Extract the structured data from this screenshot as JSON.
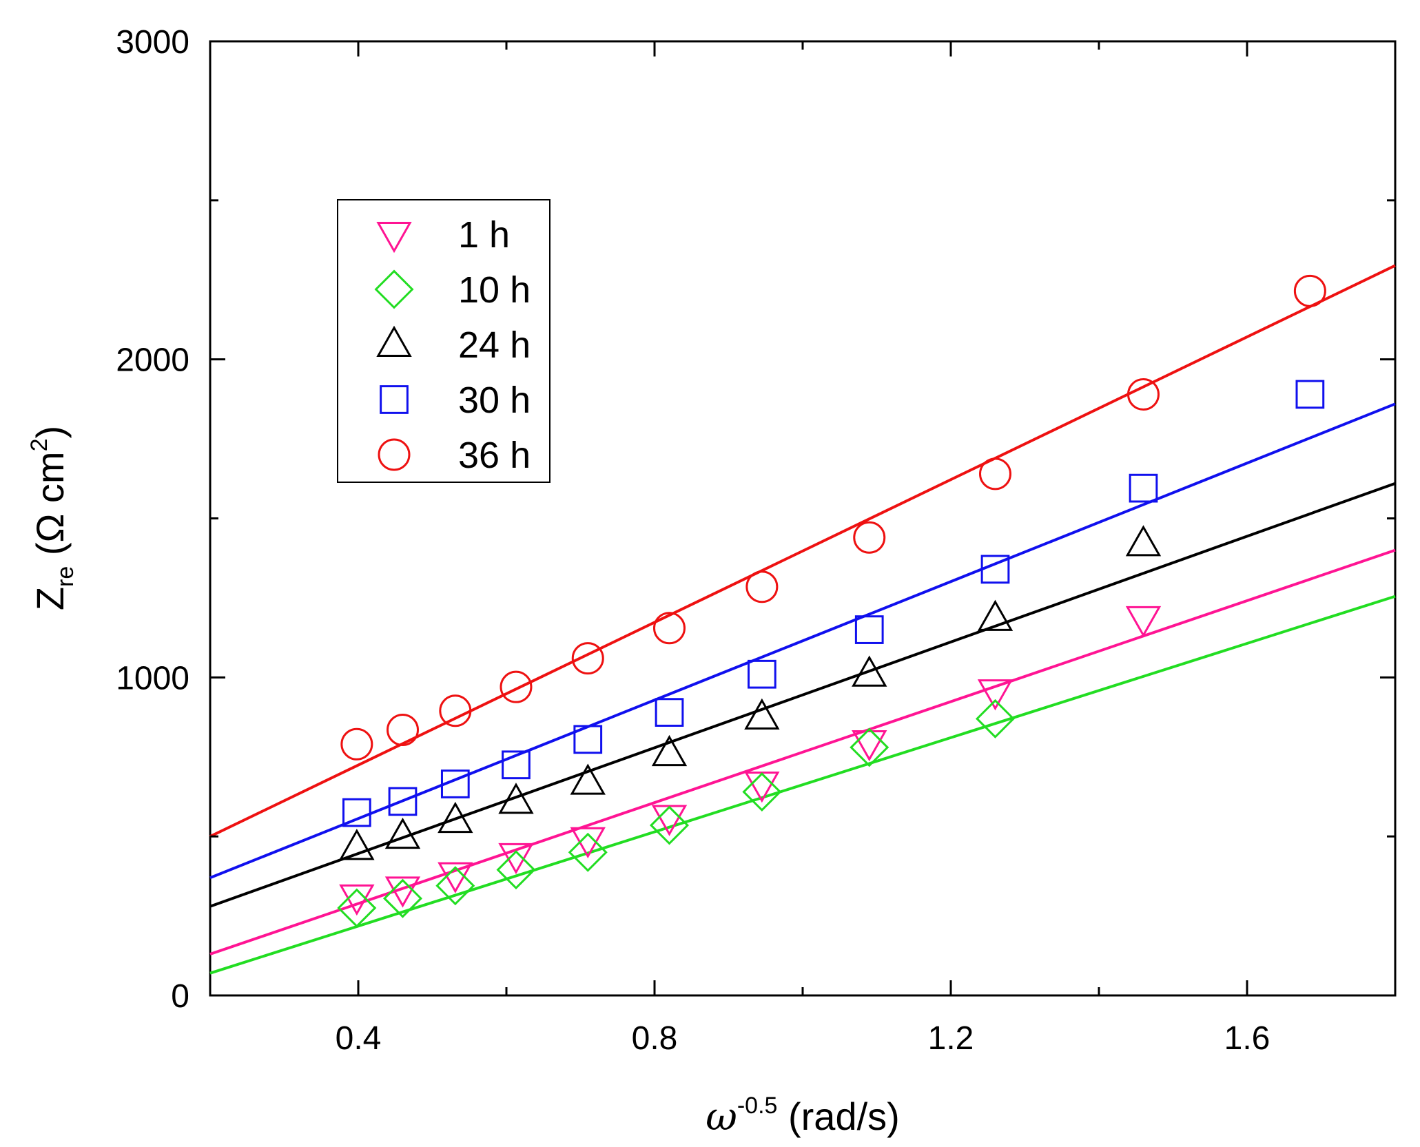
{
  "chart_data": {
    "type": "scatter",
    "title": "",
    "xlabel": {
      "base": "ω",
      "sup": "-0.5",
      "unit": " (rad/s)"
    },
    "ylabel": {
      "base": "Z",
      "sub": "re",
      "unit_open": " (Ω cm",
      "sup": "2",
      "unit_close": ")"
    },
    "xlim": [
      0.2,
      1.8
    ],
    "ylim": [
      0,
      3000
    ],
    "x_ticks": [
      0.4,
      0.8,
      1.2,
      1.6
    ],
    "x_tick_labels": [
      "0.4",
      "0.8",
      "1.2",
      "1.6"
    ],
    "x_minor_ticks": [
      0.6,
      1.0,
      1.4
    ],
    "y_ticks": [
      0,
      1000,
      2000,
      3000
    ],
    "y_tick_labels": [
      "0",
      "1000",
      "2000",
      "3000"
    ],
    "y_minor_ticks": [
      500,
      1500,
      2500
    ],
    "legend_position": "upper-left",
    "series": [
      {
        "name": "1 h",
        "marker": "triangle-down",
        "color": "#ff1493",
        "x": [
          0.398,
          0.46,
          0.531,
          0.613,
          0.71,
          0.82,
          0.945,
          1.09,
          1.26,
          1.46
        ],
        "y": [
          310,
          335,
          380,
          440,
          490,
          560,
          665,
          795,
          955,
          1185
        ],
        "fit": {
          "x": [
            0.2,
            1.8
          ],
          "y": [
            130,
            1400
          ],
          "color": "#ff1493"
        }
      },
      {
        "name": "10 h",
        "marker": "diamond",
        "color": "#22dd22",
        "x": [
          0.398,
          0.46,
          0.531,
          0.613,
          0.71,
          0.82,
          0.945,
          1.09,
          1.26
        ],
        "y": [
          275,
          305,
          345,
          395,
          450,
          535,
          640,
          780,
          870
        ],
        "fit": {
          "x": [
            0.2,
            1.8
          ],
          "y": [
            70,
            1255
          ],
          "color": "#22dd22"
        }
      },
      {
        "name": "24 h",
        "marker": "triangle-up",
        "color": "#000000",
        "x": [
          0.398,
          0.46,
          0.531,
          0.613,
          0.71,
          0.82,
          0.945,
          1.09,
          1.26,
          1.46
        ],
        "y": [
          465,
          500,
          550,
          610,
          670,
          760,
          875,
          1010,
          1185,
          1420
        ],
        "fit": {
          "x": [
            0.2,
            1.8
          ],
          "y": [
            280,
            1610
          ],
          "color": "#000000"
        }
      },
      {
        "name": "30 h",
        "marker": "square",
        "color": "#1010ee",
        "x": [
          0.398,
          0.46,
          0.531,
          0.613,
          0.71,
          0.82,
          0.945,
          1.09,
          1.26,
          1.46,
          1.685
        ],
        "y": [
          575,
          610,
          665,
          725,
          805,
          890,
          1010,
          1150,
          1340,
          1595,
          1890
        ],
        "fit": {
          "x": [
            0.2,
            1.8
          ],
          "y": [
            370,
            1860
          ],
          "color": "#1010ee"
        }
      },
      {
        "name": "36 h",
        "marker": "circle",
        "color": "#ee1111",
        "x": [
          0.398,
          0.46,
          0.531,
          0.613,
          0.71,
          0.82,
          0.945,
          1.09,
          1.26,
          1.46,
          1.685
        ],
        "y": [
          790,
          835,
          895,
          970,
          1060,
          1155,
          1285,
          1440,
          1640,
          1890,
          2215
        ],
        "fit": {
          "x": [
            0.2,
            1.8
          ],
          "y": [
            500,
            2295
          ],
          "color": "#ee1111"
        }
      }
    ]
  }
}
